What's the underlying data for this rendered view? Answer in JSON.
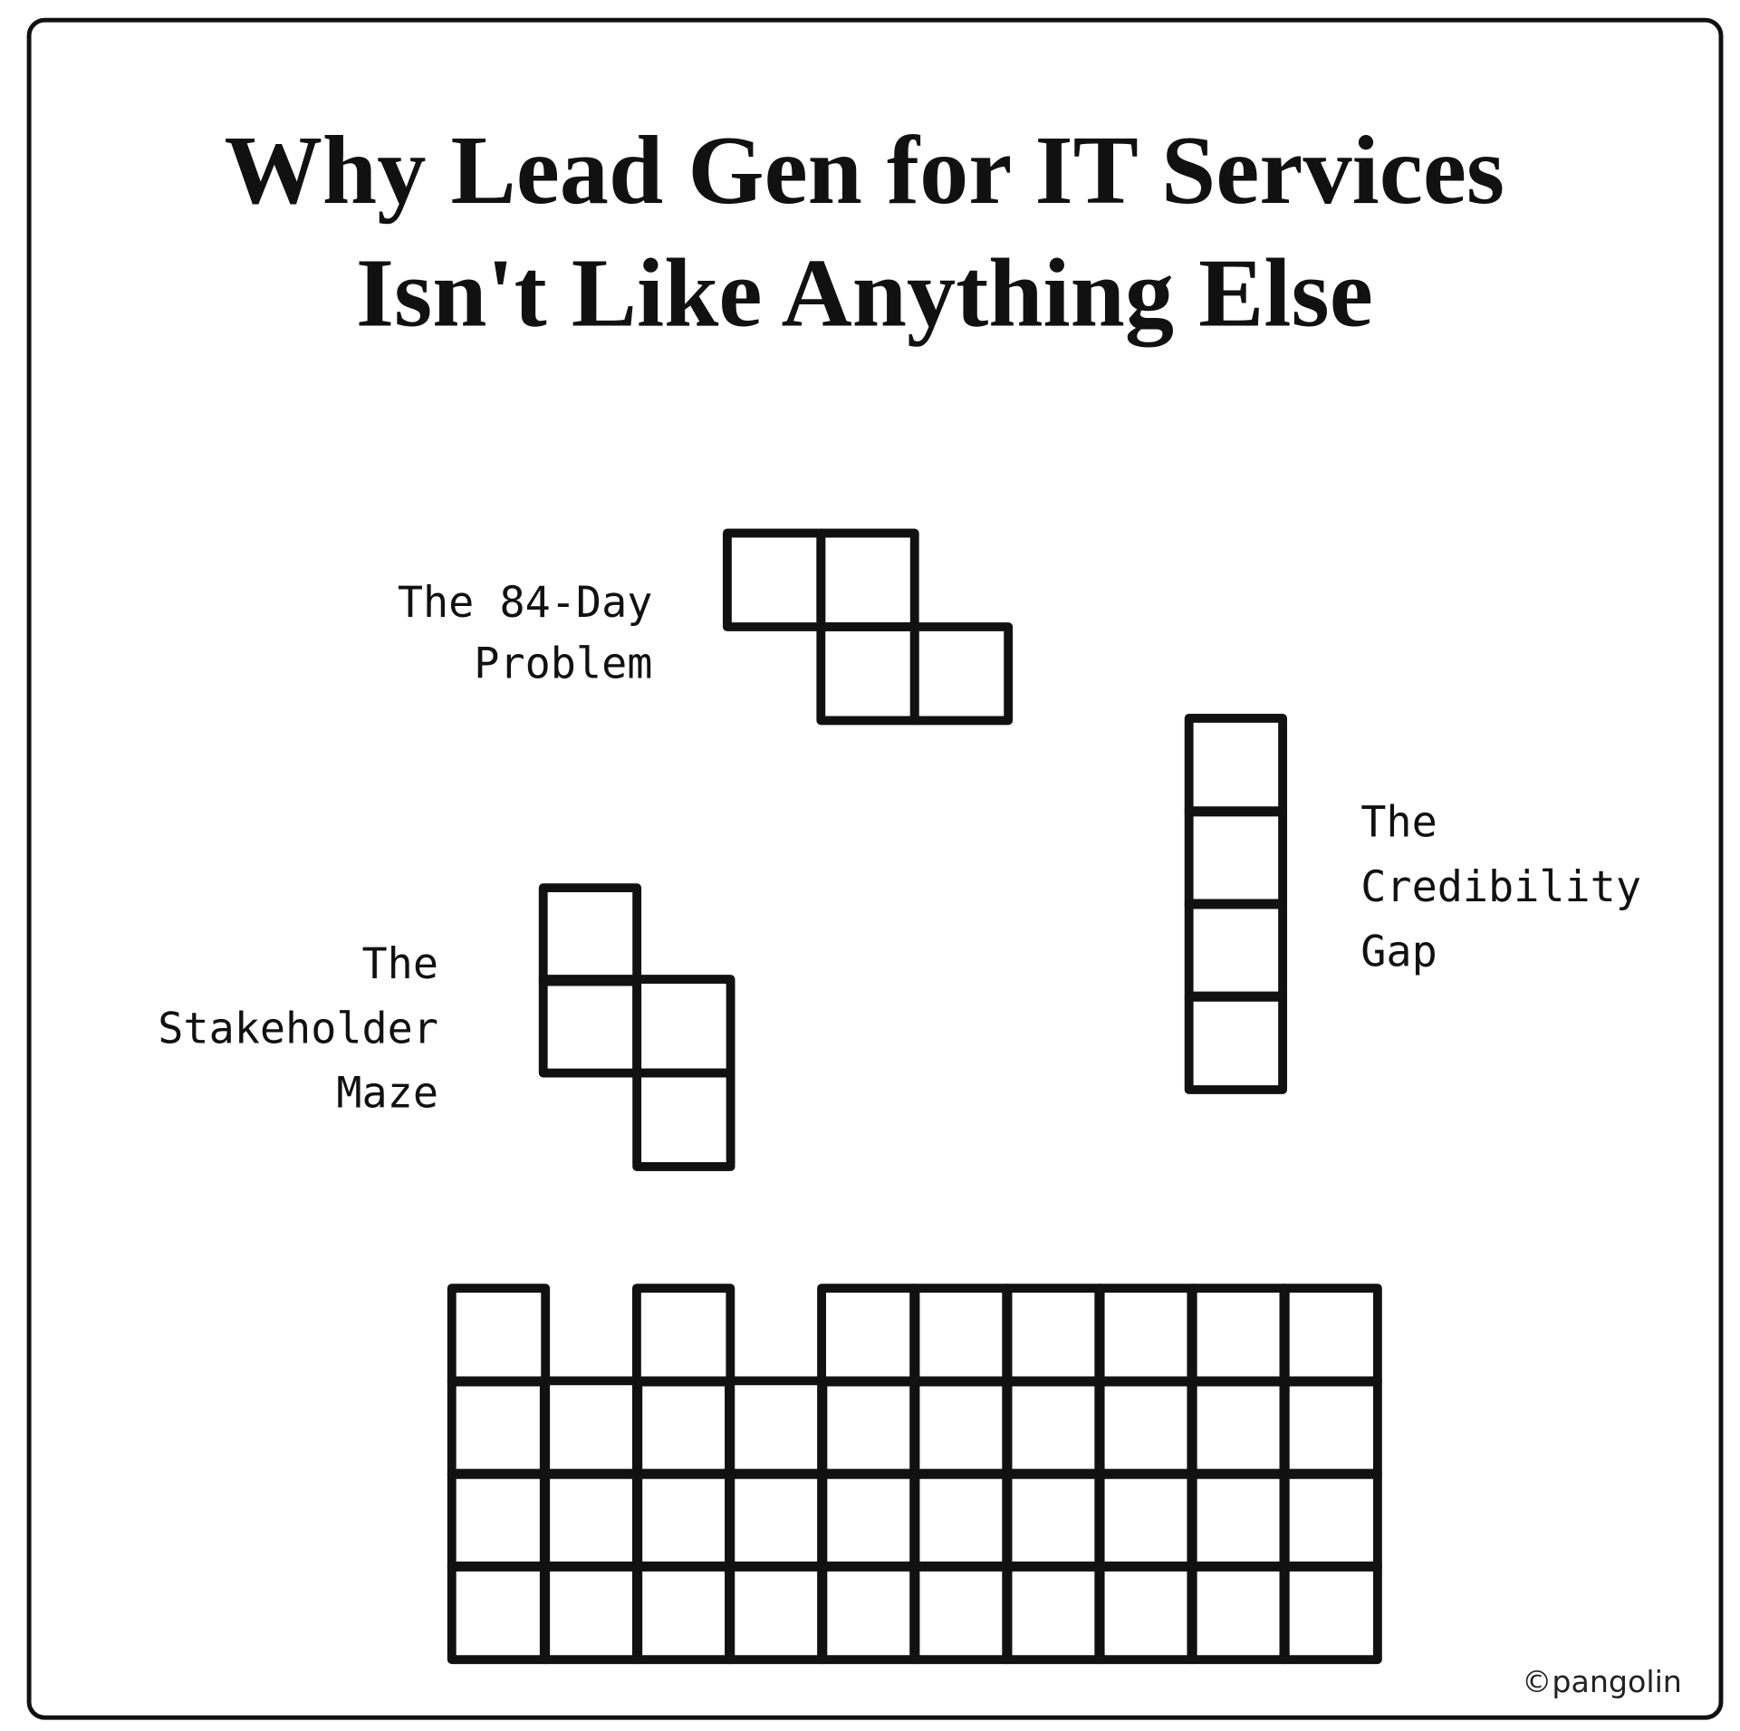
{
  "header": {
    "title": [
      "Why Lead Gen for IT Services",
      "Isn't Like Anything Else"
    ]
  },
  "pieces": [
    {
      "label": [
        "The 84-Day",
        "Problem"
      ]
    },
    {
      "label": [
        "The",
        "Credibility",
        "Gap"
      ]
    },
    {
      "label": [
        "The",
        "Stakeholder",
        "Maze"
      ]
    }
  ],
  "footer": {
    "copyright": "©pangolin"
  }
}
